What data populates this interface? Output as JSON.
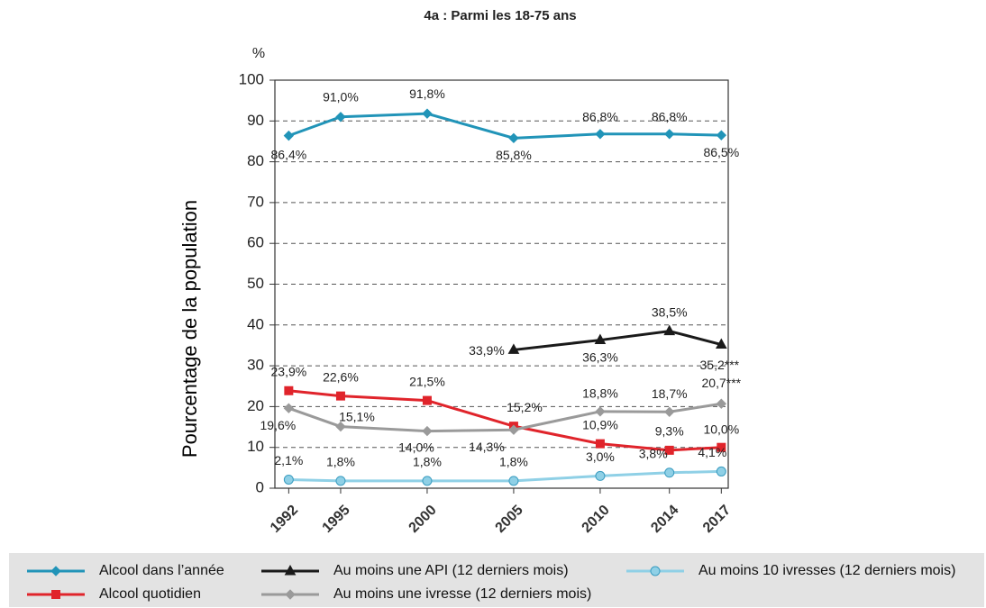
{
  "chart_data": {
    "type": "line",
    "title": "4a : Parmi les 18-75 ans",
    "y_unit": "%",
    "y_label": "Pourcentage de la population",
    "x": [
      1992,
      1995,
      2000,
      2005,
      2010,
      2014,
      2017
    ],
    "xlim": [
      1991.2,
      2017.4
    ],
    "xticks": [
      1992,
      1995,
      2000,
      2005,
      2010,
      2014,
      2017
    ],
    "ylim": [
      0,
      100
    ],
    "yticks": [
      0,
      10,
      20,
      30,
      40,
      50,
      60,
      70,
      80,
      90,
      100
    ],
    "grid": true,
    "legend": "bottom",
    "series": [
      {
        "name": "Alcool dans l’année",
        "color": "#2194b8",
        "marker": "diamond",
        "values": [
          86.4,
          91.0,
          91.8,
          85.8,
          86.8,
          86.8,
          86.5
        ],
        "value_labels": [
          "86,4%",
          "91,0%",
          "91,8%",
          "85,8%",
          "86,8%",
          "86,8%",
          "86,5%"
        ]
      },
      {
        "name": "Alcool quotidien",
        "color": "#e0242b",
        "marker": "square",
        "values": [
          23.9,
          22.6,
          21.5,
          15.2,
          10.9,
          9.3,
          10.0
        ],
        "value_labels": [
          "23,9%",
          "22,6%",
          "21,5%",
          "15,2%",
          "10,9%",
          "9,3%",
          "10,0%"
        ]
      },
      {
        "name": "Au moins une API (12 derniers mois)",
        "color": "#1a1a1a",
        "marker": "triangle",
        "values": [
          null,
          null,
          null,
          33.9,
          36.3,
          38.5,
          35.2
        ],
        "value_labels": [
          null,
          null,
          null,
          "33,9%",
          "36,3%",
          "38,5%",
          "35,2***"
        ]
      },
      {
        "name": "Au moins une ivresse (12 derniers mois)",
        "color": "#9a9a9a",
        "marker": "diamond",
        "values": [
          19.6,
          15.1,
          14.0,
          14.3,
          18.8,
          18.7,
          20.7
        ],
        "value_labels": [
          "19,6%",
          "15,1%",
          "14,0%",
          "14,3%",
          "18,8%",
          "18,7%",
          "20,7***"
        ]
      },
      {
        "name": "Au moins 10 ivresses (12 derniers mois)",
        "color": "#8fd0e6",
        "marker": "circle",
        "values": [
          2.1,
          1.8,
          1.8,
          1.8,
          3.0,
          3.8,
          4.1
        ],
        "value_labels": [
          "2,1%",
          "1,8%",
          "1,8%",
          "1,8%",
          "3,0%",
          "3,8%",
          "4,1%"
        ]
      }
    ]
  }
}
